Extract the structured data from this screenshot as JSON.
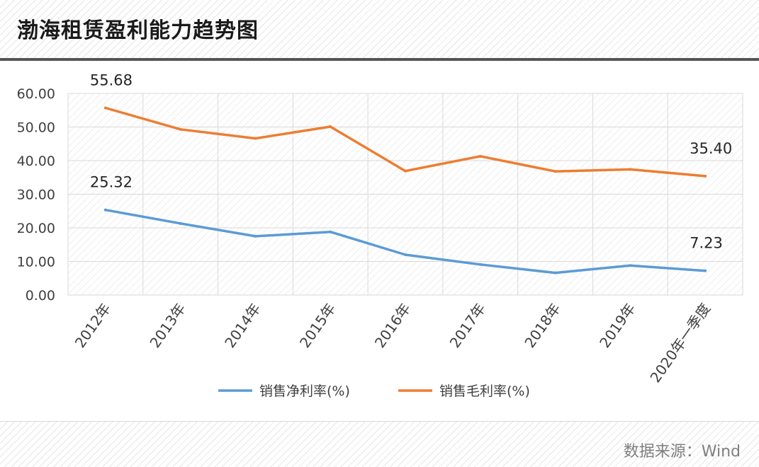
{
  "header": {
    "title": "渤海租赁盈利能力趋势图"
  },
  "footer": {
    "source": "数据来源：Wind"
  },
  "chart_data": {
    "type": "line",
    "title": "渤海租赁盈利能力趋势图",
    "categories": [
      "2012年",
      "2013年",
      "2014年",
      "2015年",
      "2016年",
      "2017年",
      "2018年",
      "2019年",
      "2020年一季度"
    ],
    "ylim": [
      0,
      60
    ],
    "yticks": [
      "0.00",
      "10.00",
      "20.00",
      "30.00",
      "40.00",
      "50.00",
      "60.00"
    ],
    "grid": true,
    "legend_position": "bottom",
    "series": [
      {
        "name": "销售净利率(%)",
        "color": "#5b9bd5",
        "values": [
          25.32,
          21.3,
          17.5,
          18.8,
          12.0,
          9.1,
          6.6,
          8.8,
          7.23
        ]
      },
      {
        "name": "销售毛利率(%)",
        "color": "#ed7d31",
        "values": [
          55.68,
          49.3,
          46.6,
          50.1,
          36.9,
          41.3,
          36.8,
          37.4,
          35.4
        ]
      }
    ],
    "annotations": [
      {
        "series": 1,
        "index": 0,
        "text": "55.68"
      },
      {
        "series": 1,
        "index": 8,
        "text": "35.40"
      },
      {
        "series": 0,
        "index": 0,
        "text": "25.32"
      },
      {
        "series": 0,
        "index": 8,
        "text": "7.23"
      }
    ]
  }
}
